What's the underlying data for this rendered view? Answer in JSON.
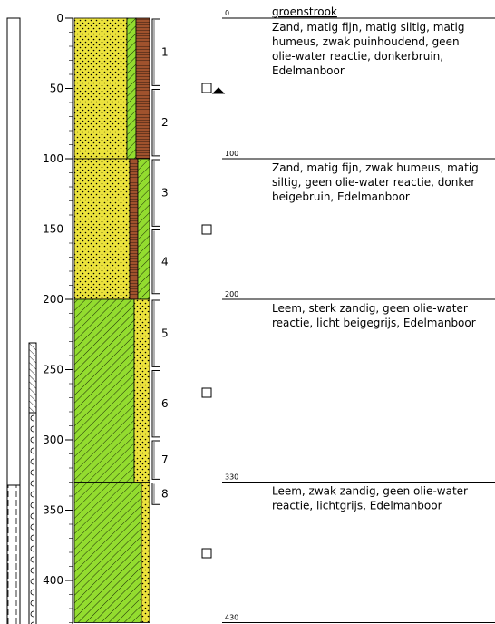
{
  "depth_axis": {
    "ticks": [
      0,
      50,
      100,
      150,
      200,
      250,
      300,
      350,
      400
    ]
  },
  "layers": [
    {
      "top": 0,
      "heading": "groenstrook",
      "description": [
        "Zand, matig fijn, matig siltig, matig",
        "humeus, zwak puinhoudend, geen",
        "olie-water reactie, donkerbruin,",
        "Edelmanboor"
      ]
    },
    {
      "top": 100,
      "description": [
        "Zand, matig fijn, zwak humeus, matig",
        "siltig, geen olie-water reactie, donker",
        "beigebruin, Edelmanboor"
      ]
    },
    {
      "top": 200,
      "description": [
        "Leem, sterk zandig, geen olie-water",
        "reactie, licht beigegrijs, Edelmanboor"
      ]
    },
    {
      "top": 330,
      "description": [
        "Leem, zwak zandig, geen olie-water",
        "reactie, lichtgrijs, Edelmanboor"
      ]
    }
  ],
  "bottom": 430,
  "samples": [
    {
      "label": "1",
      "top": 0,
      "bottom": 48
    },
    {
      "label": "2",
      "top": 50,
      "bottom": 98
    },
    {
      "label": "3",
      "top": 100,
      "bottom": 148
    },
    {
      "label": "4",
      "top": 150,
      "bottom": 196
    },
    {
      "label": "5",
      "top": 200,
      "bottom": 248
    },
    {
      "label": "6",
      "top": 250,
      "bottom": 298
    },
    {
      "label": "7",
      "top": 300,
      "bottom": 328
    },
    {
      "label": "8",
      "top": 330,
      "bottom": 346
    }
  ]
}
